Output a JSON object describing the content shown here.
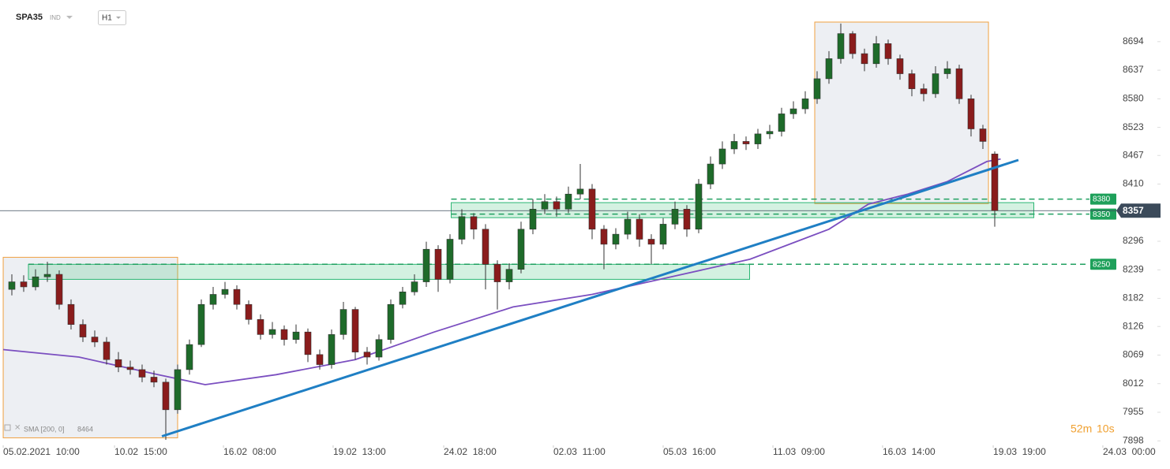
{
  "header": {
    "symbol": "SPA35",
    "market": "IND",
    "interval": "H1"
  },
  "chart_data": {
    "type": "candlestick",
    "x": [
      1,
      2,
      3,
      4,
      5,
      6,
      7,
      8,
      9,
      10,
      11,
      12,
      13,
      14,
      15,
      16,
      17,
      18,
      19,
      20,
      21,
      22,
      23,
      24,
      25,
      26,
      27,
      28,
      29,
      30,
      31,
      32,
      33,
      34,
      35,
      36,
      37,
      38,
      39,
      40,
      41,
      42,
      43,
      44,
      45,
      46,
      47,
      48,
      49,
      50,
      51,
      52,
      53,
      54,
      55,
      56,
      57,
      58,
      59,
      60,
      61,
      62,
      63,
      64,
      65,
      66,
      67,
      68,
      69,
      70,
      71,
      72,
      73,
      74,
      75,
      76,
      77,
      78,
      79,
      80,
      81,
      82,
      83,
      84
    ],
    "open": [
      8200,
      8215,
      8205,
      8225,
      8230,
      8170,
      8130,
      8105,
      8095,
      8060,
      8045,
      8040,
      8025,
      8015,
      7960,
      8040,
      8090,
      8170,
      8190,
      8200,
      8170,
      8140,
      8110,
      8120,
      8100,
      8115,
      8070,
      8050,
      8110,
      8160,
      8075,
      8065,
      8100,
      8170,
      8195,
      8215,
      8280,
      8220,
      8300,
      8345,
      8320,
      8250,
      8215,
      8240,
      8320,
      8360,
      8375,
      8360,
      8390,
      8400,
      8320,
      8290,
      8310,
      8340,
      8300,
      8290,
      8330,
      8360,
      8320,
      8410,
      8450,
      8480,
      8495,
      8490,
      8510,
      8515,
      8550,
      8560,
      8580,
      8620,
      8660,
      8710,
      8670,
      8650,
      8690,
      8660,
      8630,
      8600,
      8590,
      8630,
      8640,
      8580,
      8520,
      8470
    ],
    "high": [
      8230,
      8228,
      8240,
      8255,
      8238,
      8180,
      8140,
      8118,
      8105,
      8075,
      8058,
      8050,
      8038,
      8022,
      8050,
      8100,
      8180,
      8205,
      8215,
      8208,
      8178,
      8150,
      8135,
      8128,
      8130,
      8122,
      8080,
      8120,
      8175,
      8165,
      8085,
      8110,
      8180,
      8205,
      8230,
      8295,
      8288,
      8310,
      8360,
      8352,
      8330,
      8258,
      8252,
      8335,
      8380,
      8390,
      8385,
      8405,
      8450,
      8410,
      8328,
      8322,
      8355,
      8350,
      8310,
      8342,
      8375,
      8368,
      8420,
      8465,
      8495,
      8510,
      8505,
      8520,
      8528,
      8562,
      8575,
      8595,
      8635,
      8675,
      8730,
      8715,
      8680,
      8705,
      8698,
      8668,
      8638,
      8610,
      8645,
      8655,
      8648,
      8588,
      8528,
      8475
    ],
    "low": [
      8188,
      8195,
      8198,
      8215,
      8160,
      8120,
      8095,
      8085,
      8050,
      8035,
      8030,
      8015,
      8005,
      7900,
      7952,
      8030,
      8085,
      8160,
      8182,
      8160,
      8130,
      8100,
      8102,
      8088,
      8092,
      8055,
      8040,
      8042,
      8100,
      8060,
      8050,
      8058,
      8092,
      8162,
      8188,
      8205,
      8195,
      8212,
      8290,
      8300,
      8200,
      8160,
      8200,
      8232,
      8310,
      8350,
      8345,
      8352,
      8380,
      8300,
      8240,
      8280,
      8300,
      8285,
      8250,
      8280,
      8320,
      8305,
      8312,
      8400,
      8440,
      8470,
      8478,
      8480,
      8500,
      8505,
      8540,
      8550,
      8570,
      8610,
      8650,
      8660,
      8635,
      8642,
      8648,
      8618,
      8585,
      8575,
      8582,
      8620,
      8570,
      8505,
      8480,
      8325
    ],
    "close": [
      8215,
      8205,
      8225,
      8230,
      8170,
      8130,
      8105,
      8095,
      8060,
      8045,
      8040,
      8025,
      8015,
      7960,
      8040,
      8090,
      8170,
      8190,
      8200,
      8170,
      8140,
      8110,
      8120,
      8100,
      8115,
      8070,
      8050,
      8110,
      8160,
      8075,
      8065,
      8100,
      8170,
      8195,
      8215,
      8280,
      8220,
      8300,
      8345,
      8320,
      8250,
      8215,
      8240,
      8320,
      8360,
      8375,
      8360,
      8390,
      8400,
      8320,
      8290,
      8310,
      8340,
      8300,
      8290,
      8330,
      8360,
      8320,
      8410,
      8450,
      8480,
      8495,
      8490,
      8510,
      8515,
      8550,
      8560,
      8580,
      8620,
      8660,
      8710,
      8670,
      8650,
      8690,
      8660,
      8630,
      8600,
      8590,
      8630,
      8640,
      8580,
      8520,
      8495,
      8357
    ],
    "up_color": "#1e6b2a",
    "down_color": "#8a1c1c",
    "sma": {
      "name": "SMA [200, 0]",
      "last": 8464,
      "color": "#7b4fc0",
      "x": [
        0.27,
        6.67,
        13.33,
        17.33,
        23.33,
        30,
        36.67,
        43.33,
        50,
        56.67,
        63.33,
        70,
        73.33,
        76.67,
        80,
        83.33,
        84.5
      ],
      "values": [
        8080,
        8065,
        8030,
        8010,
        8030,
        8060,
        8115,
        8165,
        8190,
        8225,
        8260,
        8320,
        8370,
        8390,
        8415,
        8455,
        8460
      ]
    },
    "trendlines": [
      {
        "color": "#1f7fc4",
        "x": [
          13.67,
          86
        ],
        "values": [
          7907,
          8458
        ]
      }
    ],
    "zones": [
      {
        "x": [
          2.4,
          63.3
        ],
        "range": [
          8220,
          8250
        ]
      },
      {
        "x": [
          38.1,
          87.3
        ],
        "range": [
          8343,
          8373
        ]
      }
    ],
    "boxes": [
      {
        "x": [
          0.27,
          15
        ],
        "range": [
          7904,
          8264
        ]
      },
      {
        "x": [
          68.8,
          83.47
        ],
        "range": [
          8371,
          8733
        ]
      }
    ],
    "levels": [
      8380,
      8350,
      8250
    ],
    "price": 8357,
    "timer": {
      "minutes": "52m",
      "seconds": "10s"
    },
    "xlim": [
      0,
      98
    ],
    "ylim": [
      7889,
      8777
    ],
    "yticks": [
      7898,
      7955,
      8012,
      8069,
      8126,
      8182,
      8239,
      8296,
      8410,
      8467,
      8523,
      8580,
      8637,
      8694
    ],
    "xticks": [
      {
        "value": 0.27,
        "label": "05.02.2021  10:00"
      },
      {
        "value": 9.67,
        "label": "10.02  15:00"
      },
      {
        "value": 18.87,
        "label": "16.02  08:00"
      },
      {
        "value": 28.13,
        "label": "19.02  13:00"
      },
      {
        "value": 37.47,
        "label": "24.02  18:00"
      },
      {
        "value": 46.73,
        "label": "02.03  11:00"
      },
      {
        "value": 56,
        "label": "05.03  16:00"
      },
      {
        "value": 65.27,
        "label": "11.03  09:00"
      },
      {
        "value": 74.53,
        "label": "16.03  14:00"
      },
      {
        "value": 83.87,
        "label": "19.03  19:00"
      },
      {
        "value": 93.13,
        "label": "24.03  00:00"
      }
    ]
  }
}
